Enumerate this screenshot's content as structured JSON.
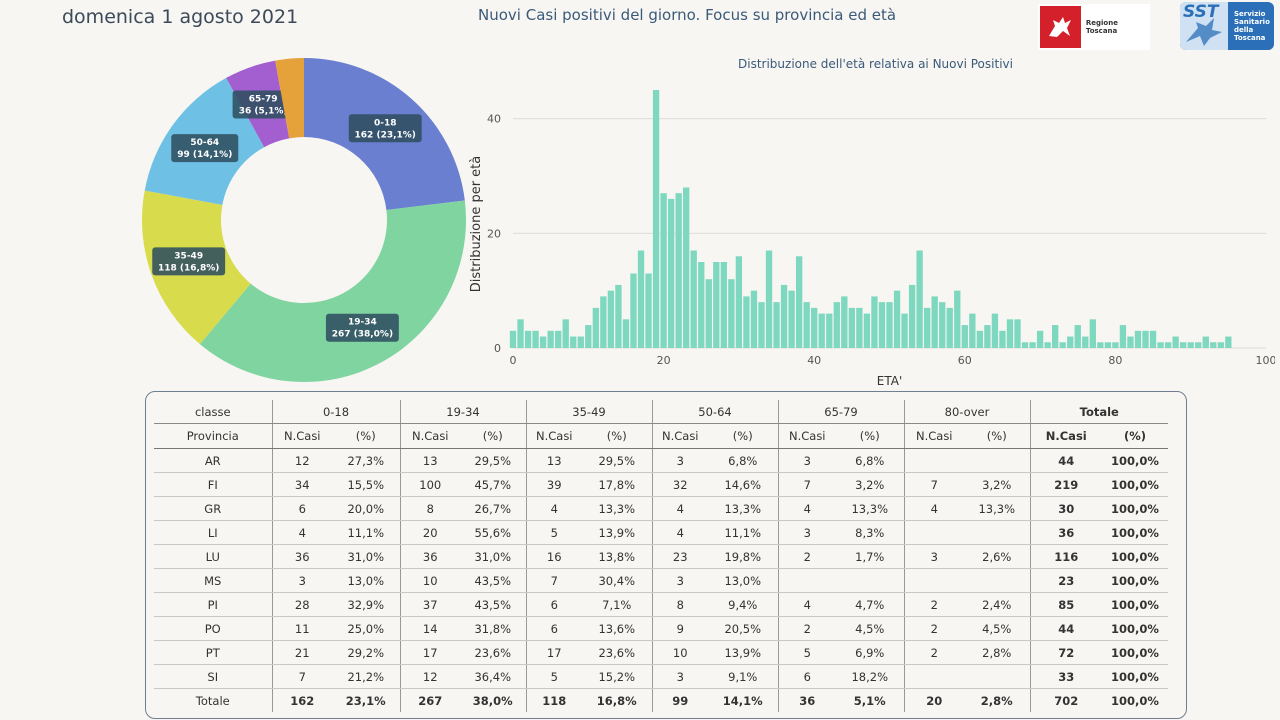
{
  "header": {
    "date": "domenica 1 agosto 2021",
    "title": "Nuovi Casi positivi del giorno. Focus su provincia ed età",
    "logo_regione": "Regione Toscana",
    "logo_sst_short": "SST",
    "logo_sst_text": "Servizio\nSanitario\ndella\nToscana"
  },
  "chart_data": [
    {
      "type": "pie",
      "donut": true,
      "labels": [
        "0-18",
        "19-34",
        "35-49",
        "50-64",
        "65-79",
        "80-over"
      ],
      "values": [
        162,
        267,
        118,
        99,
        36,
        20
      ],
      "percent_labels": [
        "23,1%",
        "38,0%",
        "16,8%",
        "14,1%",
        "5,1%",
        "2,8%"
      ],
      "data_labels": [
        "0-18\n162 (23,1%)",
        "19-34\n267 (38,0%)",
        "35-49\n118 (16,8%)",
        "50-64\n99 (14,1%)",
        "65-79\n36 (5,1%)",
        ""
      ],
      "colors": [
        "#6b7fd1",
        "#80d4a0",
        "#d8db4c",
        "#6ec1e4",
        "#a35fd0",
        "#e5a13a"
      ]
    },
    {
      "type": "bar",
      "title": "Distribuzione dell'età relativa ai Nuovi Positivi",
      "xlabel": "ETA'",
      "ylabel": "Distribuzione per età",
      "xlim": [
        0,
        100
      ],
      "ylim": [
        0,
        45
      ],
      "xticks": [
        0,
        20,
        40,
        60,
        80,
        100
      ],
      "yticks": [
        0,
        20,
        40
      ],
      "grid": true,
      "color": "#7ed8bf",
      "x": [
        0,
        1,
        2,
        3,
        4,
        5,
        6,
        7,
        8,
        9,
        10,
        11,
        12,
        13,
        14,
        15,
        16,
        17,
        18,
        19,
        20,
        21,
        22,
        23,
        24,
        25,
        26,
        27,
        28,
        29,
        30,
        31,
        32,
        33,
        34,
        35,
        36,
        37,
        38,
        39,
        40,
        41,
        42,
        43,
        44,
        45,
        46,
        47,
        48,
        49,
        50,
        51,
        52,
        53,
        54,
        55,
        56,
        57,
        58,
        59,
        60,
        61,
        62,
        63,
        64,
        65,
        66,
        67,
        68,
        69,
        70,
        71,
        72,
        73,
        74,
        75,
        76,
        77,
        78,
        79,
        80,
        81,
        82,
        83,
        84,
        85,
        86,
        87,
        88,
        89,
        90,
        91,
        92,
        93,
        94,
        95
      ],
      "values": [
        3,
        5,
        3,
        3,
        2,
        3,
        3,
        5,
        2,
        2,
        4,
        7,
        9,
        10,
        11,
        5,
        13,
        17,
        13,
        45,
        27,
        26,
        27,
        28,
        17,
        15,
        12,
        15,
        15,
        12,
        16,
        9,
        10,
        8,
        17,
        8,
        11,
        10,
        16,
        8,
        7,
        6,
        6,
        8,
        9,
        7,
        7,
        6,
        9,
        8,
        8,
        10,
        6,
        11,
        17,
        7,
        9,
        8,
        7,
        10,
        4,
        6,
        3,
        4,
        6,
        3,
        5,
        5,
        1,
        1,
        3,
        1,
        4,
        1,
        2,
        4,
        2,
        5,
        1,
        1,
        1,
        4,
        2,
        3,
        3,
        3,
        1,
        1,
        2,
        1,
        1,
        1,
        2,
        1,
        1,
        2
      ]
    }
  ],
  "table": {
    "classe_label": "classe",
    "provincia_label": "Provincia",
    "groups": [
      "0-18",
      "19-34",
      "35-49",
      "50-64",
      "65-79",
      "80-over",
      "Totale"
    ],
    "col_n": "N.Casi",
    "col_pct": "(%)",
    "rows": [
      [
        "AR",
        "12",
        "27,3%",
        "13",
        "29,5%",
        "13",
        "29,5%",
        "3",
        "6,8%",
        "3",
        "6,8%",
        "",
        "",
        "44",
        "100,0%"
      ],
      [
        "FI",
        "34",
        "15,5%",
        "100",
        "45,7%",
        "39",
        "17,8%",
        "32",
        "14,6%",
        "7",
        "3,2%",
        "7",
        "3,2%",
        "219",
        "100,0%"
      ],
      [
        "GR",
        "6",
        "20,0%",
        "8",
        "26,7%",
        "4",
        "13,3%",
        "4",
        "13,3%",
        "4",
        "13,3%",
        "4",
        "13,3%",
        "30",
        "100,0%"
      ],
      [
        "LI",
        "4",
        "11,1%",
        "20",
        "55,6%",
        "5",
        "13,9%",
        "4",
        "11,1%",
        "3",
        "8,3%",
        "",
        "",
        "36",
        "100,0%"
      ],
      [
        "LU",
        "36",
        "31,0%",
        "36",
        "31,0%",
        "16",
        "13,8%",
        "23",
        "19,8%",
        "2",
        "1,7%",
        "3",
        "2,6%",
        "116",
        "100,0%"
      ],
      [
        "MS",
        "3",
        "13,0%",
        "10",
        "43,5%",
        "7",
        "30,4%",
        "3",
        "13,0%",
        "",
        "",
        "",
        "",
        "23",
        "100,0%"
      ],
      [
        "PI",
        "28",
        "32,9%",
        "37",
        "43,5%",
        "6",
        "7,1%",
        "8",
        "9,4%",
        "4",
        "4,7%",
        "2",
        "2,4%",
        "85",
        "100,0%"
      ],
      [
        "PO",
        "11",
        "25,0%",
        "14",
        "31,8%",
        "6",
        "13,6%",
        "9",
        "20,5%",
        "2",
        "4,5%",
        "2",
        "4,5%",
        "44",
        "100,0%"
      ],
      [
        "PT",
        "21",
        "29,2%",
        "17",
        "23,6%",
        "17",
        "23,6%",
        "10",
        "13,9%",
        "5",
        "6,9%",
        "2",
        "2,8%",
        "72",
        "100,0%"
      ],
      [
        "SI",
        "7",
        "21,2%",
        "12",
        "36,4%",
        "5",
        "15,2%",
        "3",
        "9,1%",
        "6",
        "18,2%",
        "",
        "",
        "33",
        "100,0%"
      ]
    ],
    "total_row": [
      "Totale",
      "162",
      "23,1%",
      "267",
      "38,0%",
      "118",
      "16,8%",
      "99",
      "14,1%",
      "36",
      "5,1%",
      "20",
      "2,8%",
      "702",
      "100,0%"
    ]
  }
}
